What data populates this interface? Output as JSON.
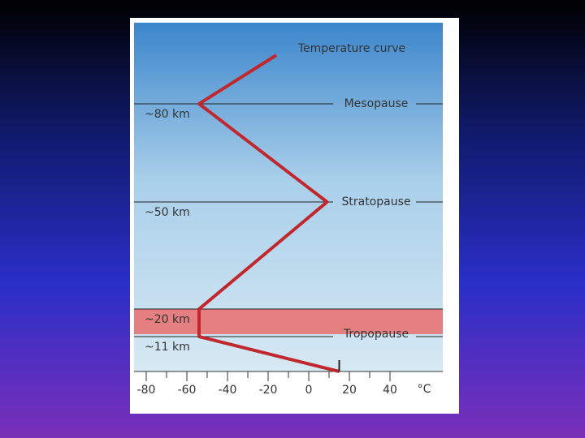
{
  "chart_data": {
    "type": "line",
    "title": "Temperature curve",
    "categories": [
      null,
      "~11 km",
      "~20 km",
      "~50 km",
      "~80 km",
      null
    ],
    "boundaries": [
      null,
      "Tropopause",
      null,
      "Stratopause",
      "Mesopause",
      null
    ],
    "series": [
      {
        "name": "Temperature curve",
        "color": "#c0282e",
        "values": [
          15,
          -54,
          -54,
          9,
          -54,
          -16
        ]
      }
    ],
    "xlim": [
      -86,
      66
    ],
    "xticks": [
      -80,
      -60,
      -40,
      -20,
      0,
      20,
      40
    ],
    "xminorticks": [
      -70,
      -50,
      -30,
      -10,
      10,
      30
    ],
    "xlabel": "°C",
    "band_color": "#e87474"
  }
}
